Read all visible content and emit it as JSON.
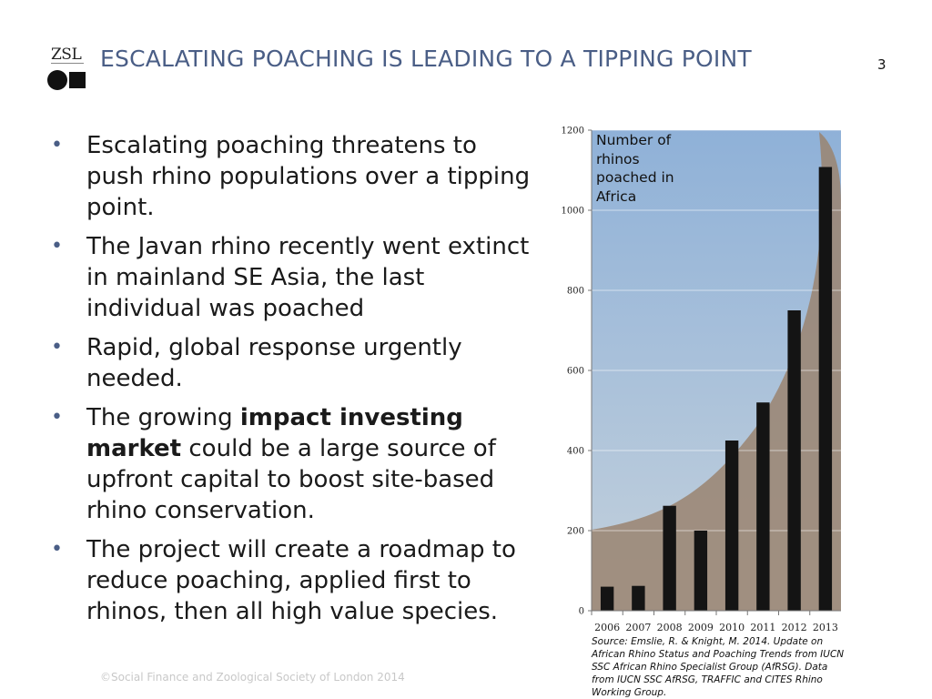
{
  "logo": {
    "text": "ZSL"
  },
  "title": "ESCALATING POACHING IS LEADING TO A TIPPING POINT",
  "page_number": "3",
  "bullets": [
    {
      "parts": [
        {
          "text": "Escalating poaching threatens to push rhino populations over a tipping point.",
          "bold": false
        }
      ]
    },
    {
      "parts": [
        {
          "text": "The Javan rhino recently went extinct in mainland SE Asia, the last individual was poached",
          "bold": false
        }
      ]
    },
    {
      "parts": [
        {
          "text": "Rapid, global response urgently needed.",
          "bold": false
        }
      ]
    },
    {
      "parts": [
        {
          "text": "The growing ",
          "bold": false
        },
        {
          "text": "impact investing market",
          "bold": true
        },
        {
          "text": " could be a large source of upfront capital to boost site-based rhino conservation.",
          "bold": false
        }
      ]
    },
    {
      "parts": [
        {
          "text": "The project will create a roadmap to reduce poaching, applied first to rhinos, then all high value species.",
          "bold": false
        }
      ]
    }
  ],
  "footer": "©Social Finance and Zoological Society of London 2014",
  "chart_label": "Number of rhinos poached in Africa",
  "source": "Source: Emslie, R. & Knight, M. 2014. Update on African Rhino Status and Poaching Trends from IUCN SSC African Rhino Specialist Group (AfRSG). Data from IUCN SSC AfRSG, TRAFFIC and CITES Rhino Working Group.",
  "chart_data": {
    "type": "bar",
    "categories": [
      "2006",
      "2007",
      "2008",
      "2009",
      "2010",
      "2011",
      "2012",
      "2013"
    ],
    "values": [
      60,
      62,
      262,
      200,
      425,
      520,
      750,
      1108
    ],
    "ylim": [
      0,
      1200
    ],
    "yticks": [
      0,
      200,
      400,
      600,
      800,
      1000,
      1200
    ],
    "grid": true,
    "colors": {
      "bar": "#141414",
      "sky_top": "#8fb1d8",
      "sky_bottom": "#c4d1dc",
      "horn": "#9a8470"
    }
  }
}
